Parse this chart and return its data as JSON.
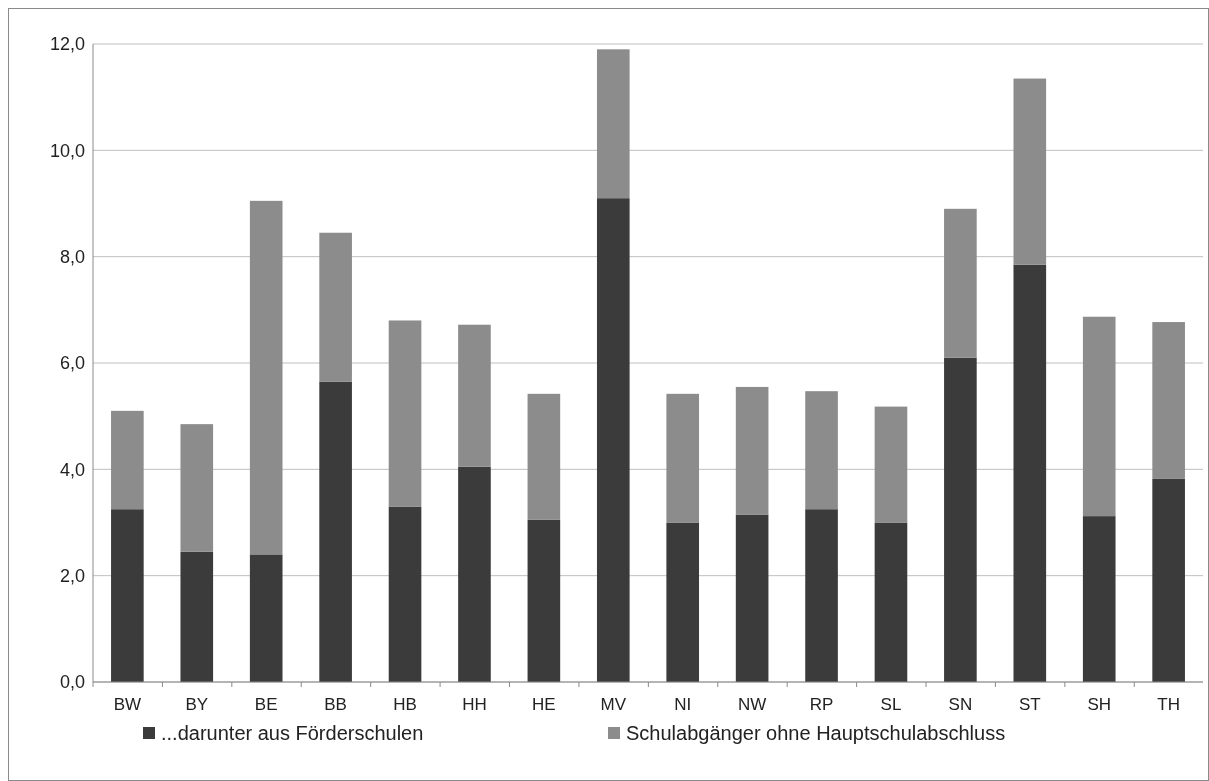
{
  "chart_data": {
    "type": "bar",
    "stacked": true,
    "categories": [
      "BW",
      "BY",
      "BE",
      "BB",
      "HB",
      "HH",
      "HE",
      "MV",
      "NI",
      "NW",
      "RP",
      "SL",
      "SN",
      "ST",
      "SH",
      "TH"
    ],
    "series": [
      {
        "name": "...darunter aus Förderschulen",
        "color": "#3b3b3b",
        "values": [
          3.25,
          2.45,
          2.4,
          5.65,
          3.3,
          4.05,
          3.05,
          9.1,
          3.0,
          3.15,
          3.25,
          3.0,
          6.1,
          7.85,
          3.12,
          3.82
        ]
      },
      {
        "name": "Schulabgänger ohne Hauptschulabschluss",
        "color": "#8c8c8c",
        "values": [
          1.85,
          2.4,
          6.65,
          2.8,
          3.5,
          2.67,
          2.37,
          2.8,
          2.42,
          2.4,
          2.22,
          2.18,
          2.8,
          3.5,
          3.75,
          2.95
        ]
      }
    ],
    "ylim": [
      0,
      12
    ],
    "yticks": [
      {
        "value": 0,
        "label": "0,0"
      },
      {
        "value": 2,
        "label": "2,0"
      },
      {
        "value": 4,
        "label": "4,0"
      },
      {
        "value": 6,
        "label": "6,0"
      },
      {
        "value": 8,
        "label": "8,0"
      },
      {
        "value": 10,
        "label": "10,0"
      },
      {
        "value": 12,
        "label": "12,0"
      }
    ],
    "grid": "y",
    "legend": "bottom"
  }
}
